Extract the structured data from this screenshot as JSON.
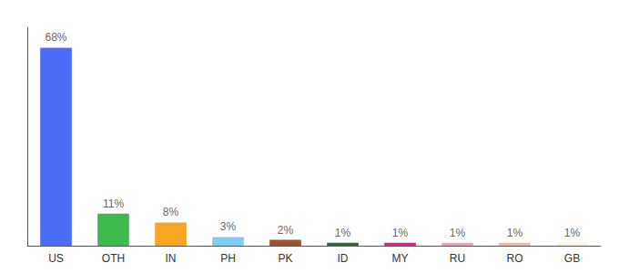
{
  "chart_data": {
    "type": "bar",
    "categories": [
      "US",
      "OTH",
      "IN",
      "PH",
      "PK",
      "ID",
      "MY",
      "RU",
      "RO",
      "GB"
    ],
    "values": [
      68,
      11,
      8,
      3,
      2,
      1,
      1,
      1,
      1,
      1
    ],
    "value_labels": [
      "68%",
      "11%",
      "8%",
      "3%",
      "2%",
      "1%",
      "1%",
      "1%",
      "1%",
      "1%"
    ],
    "colors": [
      "#4a6cf7",
      "#3dba4e",
      "#f5a623",
      "#7dcef5",
      "#a0522d",
      "#2e6b2e",
      "#e91e8c",
      "#f4a0b0",
      "#f5b8a0",
      "#f5f5d0"
    ],
    "ylim": [
      0,
      75
    ],
    "grid": false,
    "data_labels": true,
    "tick_labels": "x"
  }
}
